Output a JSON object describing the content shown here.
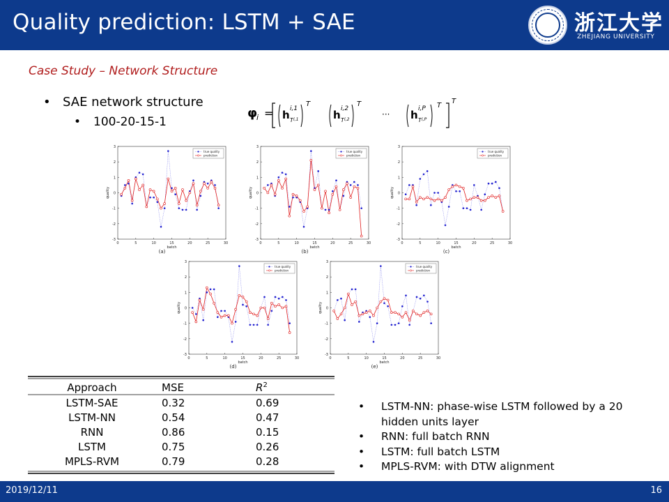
{
  "header": {
    "title": "Quality prediction: LSTM + SAE"
  },
  "logo": {
    "cn": "浙江大学",
    "en": "ZHEJIANG UNIVERSITY"
  },
  "subtitle": "Case Study – Network Structure",
  "bullets": {
    "main": "SAE network structure",
    "sub": "100-20-15-1"
  },
  "equation": {
    "phi": "φ",
    "i": "i",
    "T": "T",
    "dots": "···"
  },
  "colors": {
    "brand": "#0d3a8c",
    "subtitle": "#b01c1c",
    "true_series": "#1f1fcf",
    "pred_series": "#e01b1b"
  },
  "chart_data": [
    {
      "type": "line",
      "caption": "(a)",
      "xlabel": "batch",
      "ylabel": "quality",
      "xlim": [
        0,
        30
      ],
      "ylim": [
        -3,
        3
      ],
      "xticks": [
        "0",
        "5",
        "10",
        "15",
        "20",
        "25",
        "30"
      ],
      "yticks": [
        "3",
        "2",
        "1",
        "0",
        "-1",
        "-2",
        "-3"
      ],
      "legend": [
        "true quality",
        "prediction"
      ],
      "series": [
        {
          "name": "true quality",
          "values": [
            -0.2,
            0.5,
            0.6,
            -0.7,
            1.0,
            1.3,
            1.2,
            -0.9,
            -0.3,
            -0.3,
            -0.6,
            -2.2,
            -1.0,
            2.7,
            0.3,
            -0.1,
            -1.0,
            -1.1,
            -1.1,
            0.1,
            0.8,
            -1.1,
            -0.2,
            0.7,
            0.6,
            0.8,
            0.5,
            -1.0
          ]
        },
        {
          "name": "prediction",
          "values": [
            -0.1,
            0.3,
            0.8,
            -0.5,
            0.9,
            0.2,
            0.5,
            -0.9,
            0.2,
            0.1,
            -0.4,
            -1.0,
            -0.7,
            0.9,
            0.1,
            0.3,
            -0.7,
            0.2,
            -0.5,
            0.0,
            0.6,
            -0.8,
            0.1,
            0.6,
            0.3,
            0.7,
            0.3,
            -0.8
          ]
        }
      ]
    },
    {
      "type": "line",
      "caption": "(b)",
      "xlabel": "batch",
      "ylabel": "quality",
      "xlim": [
        0,
        30
      ],
      "ylim": [
        -3,
        3
      ],
      "xticks": [
        "0",
        "5",
        "10",
        "15",
        "20",
        "25",
        "30"
      ],
      "yticks": [
        "3",
        "2",
        "1",
        "0",
        "-1",
        "-2",
        "-3"
      ],
      "legend": [
        "true quality",
        "prediction"
      ],
      "series": [
        {
          "name": "true quality",
          "values": [
            0.3,
            0.5,
            0.6,
            -0.2,
            1.0,
            1.3,
            1.2,
            -0.9,
            -0.3,
            -0.3,
            -0.6,
            -2.2,
            -1.0,
            2.7,
            0.3,
            1.4,
            -1.0,
            -1.1,
            -1.1,
            0.1,
            0.8,
            -1.1,
            -0.2,
            0.7,
            0.5,
            0.7,
            0.5,
            -1.0
          ]
        },
        {
          "name": "prediction",
          "values": [
            0.3,
            0.0,
            0.5,
            -0.1,
            0.8,
            0.3,
            0.9,
            -1.5,
            -0.1,
            -0.2,
            -0.5,
            -1.2,
            -0.9,
            2.1,
            0.2,
            0.5,
            -1.0,
            0.1,
            -1.3,
            -0.1,
            0.4,
            -1.1,
            0.2,
            0.6,
            -0.3,
            0.4,
            0.3,
            -2.8
          ]
        }
      ]
    },
    {
      "type": "line",
      "caption": "(c)",
      "xlabel": "batch",
      "ylabel": "quality",
      "xlim": [
        0,
        30
      ],
      "ylim": [
        -3,
        3
      ],
      "xticks": [
        "0",
        "5",
        "10",
        "15",
        "20",
        "25",
        "30"
      ],
      "yticks": [
        "3",
        "2",
        "1",
        "0",
        "-1",
        "-2",
        "-3"
      ],
      "legend": [
        "true quality",
        "prediction"
      ],
      "series": [
        {
          "name": "true quality",
          "values": [
            -0.1,
            0.5,
            0.5,
            -0.8,
            0.9,
            1.2,
            1.4,
            -0.8,
            0.0,
            0.0,
            -0.6,
            -2.1,
            -0.9,
            0.5,
            0.1,
            0.1,
            -1.0,
            -1.0,
            -1.1,
            0.5,
            -0.2,
            -1.1,
            -0.1,
            0.6,
            0.6,
            0.7,
            0.3,
            -1.2
          ]
        },
        {
          "name": "prediction",
          "values": [
            -0.4,
            -0.4,
            0.4,
            -0.6,
            -0.3,
            -0.4,
            -0.3,
            -0.4,
            -0.5,
            -0.4,
            -0.5,
            -0.3,
            0.2,
            0.4,
            0.5,
            0.4,
            0.3,
            -0.5,
            -0.4,
            -0.3,
            -0.3,
            -0.5,
            -0.5,
            -0.3,
            -0.2,
            -0.3,
            -0.2,
            -1.2
          ]
        }
      ]
    },
    {
      "type": "line",
      "caption": "(d)",
      "xlabel": "batch",
      "ylabel": "quality",
      "xlim": [
        0,
        30
      ],
      "ylim": [
        -3,
        3
      ],
      "xticks": [
        "0",
        "5",
        "10",
        "15",
        "20",
        "25",
        "30"
      ],
      "yticks": [
        "3",
        "2",
        "1",
        "0",
        "-1",
        "-2",
        "-3"
      ],
      "legend": [
        "true quality",
        "prediction"
      ],
      "series": [
        {
          "name": "true quality",
          "values": [
            0.0,
            -0.4,
            0.6,
            -0.8,
            1.0,
            1.2,
            1.2,
            -0.6,
            -0.2,
            -0.2,
            -0.6,
            -2.2,
            -0.9,
            2.7,
            0.2,
            0.1,
            -1.1,
            -1.1,
            -1.1,
            0.0,
            0.7,
            -1.1,
            -0.2,
            0.7,
            0.6,
            0.7,
            0.5,
            -1.0
          ]
        },
        {
          "name": "prediction",
          "values": [
            -0.3,
            -0.9,
            0.5,
            -0.1,
            1.3,
            0.9,
            0.3,
            -0.3,
            -0.6,
            -0.5,
            -0.5,
            -1.0,
            -0.1,
            0.8,
            0.7,
            0.4,
            -0.3,
            -0.4,
            -0.5,
            0.0,
            0.0,
            -0.7,
            0.3,
            0.1,
            0.2,
            0.0,
            0.1,
            -1.6
          ]
        }
      ]
    },
    {
      "type": "line",
      "caption": "(e)",
      "xlabel": "batch",
      "ylabel": "quality",
      "xlim": [
        0,
        30
      ],
      "ylim": [
        -3,
        3
      ],
      "xticks": [
        "0",
        "5",
        "10",
        "15",
        "20",
        "25",
        "30"
      ],
      "yticks": [
        "3",
        "2",
        "1",
        "0",
        "-1",
        "-2",
        "-3"
      ],
      "legend": [
        "true quality",
        "prediction"
      ],
      "series": [
        {
          "name": "true quality",
          "values": [
            -0.2,
            0.5,
            0.6,
            -0.8,
            0.9,
            1.2,
            1.2,
            -0.9,
            -0.3,
            -0.2,
            -0.6,
            -2.2,
            -1.0,
            2.7,
            0.3,
            0.1,
            -1.1,
            -1.1,
            -1.0,
            0.1,
            0.8,
            -1.1,
            -0.2,
            0.7,
            0.6,
            0.8,
            0.4,
            -1.0
          ]
        },
        {
          "name": "prediction",
          "values": [
            -0.2,
            -0.7,
            -0.4,
            0.0,
            0.9,
            0.2,
            0.4,
            -0.5,
            -0.4,
            -0.3,
            -0.2,
            -0.5,
            0.0,
            0.4,
            0.6,
            0.5,
            -0.3,
            -0.3,
            -0.4,
            -0.6,
            -0.3,
            -0.8,
            -0.2,
            -0.4,
            -0.5,
            -0.3,
            -0.2,
            -0.4
          ]
        }
      ]
    },
    {
      "type": "table",
      "columns": [
        "Approach",
        "MSE",
        "R2"
      ],
      "rows": [
        [
          "LSTM-SAE",
          "0.32",
          "0.69"
        ],
        [
          "LSTM-NN",
          "0.54",
          "0.47"
        ],
        [
          "RNN",
          "0.86",
          "0.15"
        ],
        [
          "LSTM",
          "0.75",
          "0.26"
        ],
        [
          "MPLS-RVM",
          "0.79",
          "0.28"
        ]
      ]
    }
  ],
  "notes": [
    "LSTM-NN: phase-wise LSTM followed by a 20 hidden units layer",
    "RNN: full batch RNN",
    "LSTM: full batch LSTM",
    "MPLS-RVM: with DTW alignment"
  ],
  "footer": {
    "date": "2019/12/11",
    "page": "16"
  }
}
